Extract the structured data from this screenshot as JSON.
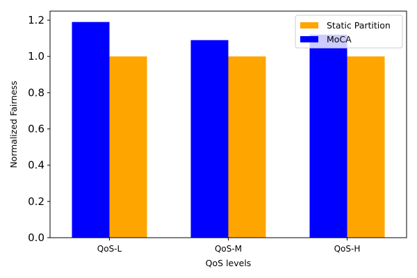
{
  "chart_data": {
    "type": "bar",
    "title": "",
    "xlabel": "QoS levels",
    "ylabel": "Normalized Fairness",
    "categories": [
      "QoS-L",
      "QoS-M",
      "QoS-H"
    ],
    "series": [
      {
        "name": "MoCA",
        "values": [
          1.19,
          1.09,
          1.12
        ],
        "color": "#0000ff"
      },
      {
        "name": "Static Partition",
        "values": [
          1.0,
          1.0,
          1.0
        ],
        "color": "#ffa500"
      }
    ],
    "ylim": [
      0,
      1.25
    ],
    "yticks": [
      "0.0",
      "0.2",
      "0.4",
      "0.6",
      "0.8",
      "1.0",
      "1.2"
    ],
    "grid": false,
    "legend_position": "top-right",
    "legend_order": [
      "Static Partition",
      "MoCA"
    ]
  }
}
